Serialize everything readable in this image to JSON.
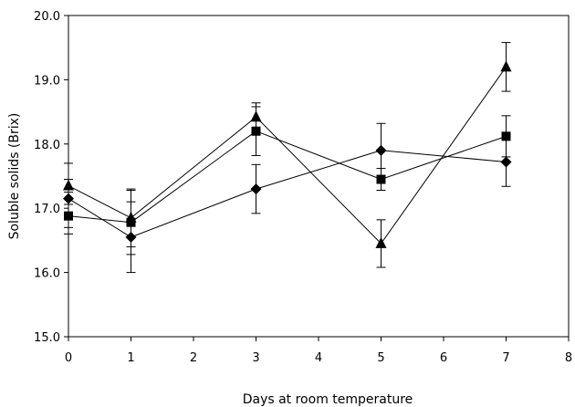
{
  "chart_data": {
    "type": "line",
    "title": "",
    "xlabel": "Days at room temperature",
    "ylabel": "Soluble solids (Brix)",
    "xlim": [
      0,
      8
    ],
    "ylim": [
      15.0,
      20.0
    ],
    "xticks": [
      "0",
      "1",
      "2",
      "3",
      "4",
      "5",
      "6",
      "7",
      "8"
    ],
    "yticks": [
      "15.0",
      "16.0",
      "17.0",
      "18.0",
      "19.0",
      "20.0"
    ],
    "grid": false,
    "x": [
      0,
      1,
      3,
      5,
      7
    ],
    "series": [
      {
        "marker": "diamond",
        "values": [
          17.15,
          16.55,
          17.3,
          17.9,
          17.72
        ],
        "error": [
          0.55,
          0.55,
          0.38,
          0.42,
          0.38
        ]
      },
      {
        "marker": "square",
        "values": [
          16.88,
          16.78,
          18.2,
          17.45,
          18.12
        ],
        "error": [
          0.18,
          0.5,
          0.38,
          0.17,
          0.32
        ]
      },
      {
        "marker": "triangle",
        "values": [
          17.35,
          16.85,
          18.42,
          16.45,
          19.2
        ],
        "error": [
          0.1,
          0.45,
          0.22,
          0.37,
          0.38
        ]
      }
    ]
  }
}
